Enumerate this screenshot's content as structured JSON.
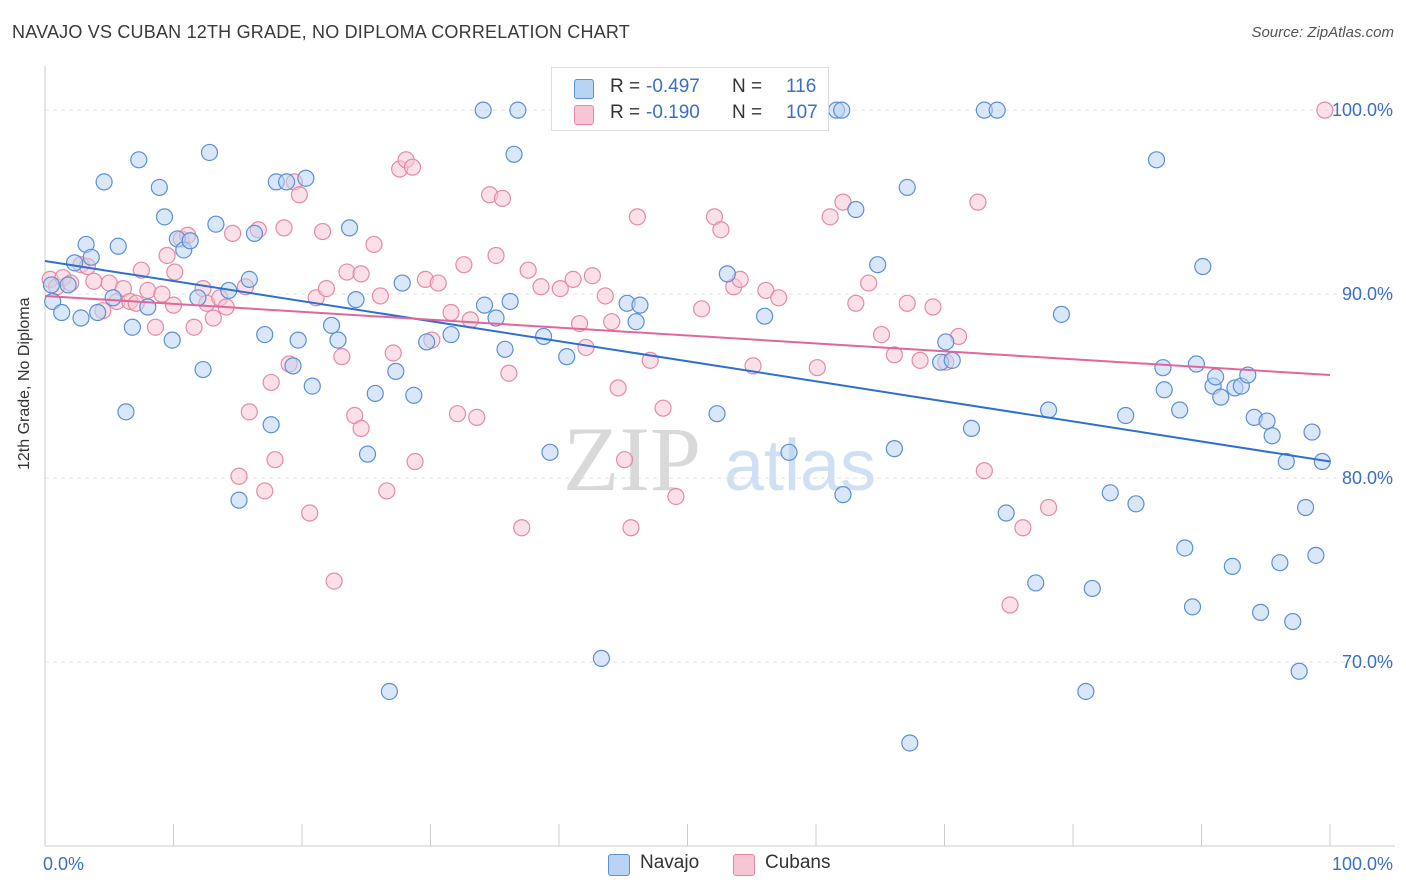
{
  "title": "NAVAJO VS CUBAN 12TH GRADE, NO DIPLOMA CORRELATION CHART",
  "source": "Source: ZipAtlas.com",
  "watermark": {
    "zip": "ZIP",
    "atlas": "atlas"
  },
  "legend": {
    "navajo": {
      "r_label": "R =",
      "r_value": "-0.497",
      "n_label": "N =",
      "n_value": "116"
    },
    "cubans": {
      "r_label": "R =",
      "r_value": "-0.190",
      "n_label": "N =",
      "n_value": "107"
    }
  },
  "bottom_legend": {
    "navajo": "Navajo",
    "cubans": "Cubans"
  },
  "colors": {
    "navajo_fill": "#b9d3f3",
    "navajo_stroke": "#5b8fd6",
    "navajo_line": "#2f6fd0",
    "cubans_fill": "#f7c6d4",
    "cubans_stroke": "#e58aa6",
    "cubans_line": "#e0679a",
    "tick_label": "#3b6fc4",
    "grid": "#e3e3e3"
  },
  "chart_data": {
    "type": "scatter",
    "title": "NAVAJO VS CUBAN 12TH GRADE, NO DIPLOMA CORRELATION CHART",
    "xlabel": "",
    "ylabel": "12th Grade, No Diploma",
    "xlim": [
      0,
      100
    ],
    "ylim": [
      60,
      102.4
    ],
    "x_tick_labels": [
      "0.0%",
      "100.0%"
    ],
    "y_ticks": [
      100,
      90,
      80,
      70
    ],
    "y_tick_labels": [
      "100.0%",
      "90.0%",
      "80.0%",
      "70.0%"
    ],
    "grid": true,
    "legend_position": "top-center",
    "series": [
      {
        "name": "Navajo",
        "trend": {
          "x": [
            0,
            100
          ],
          "y": [
            91.8,
            80.9
          ]
        },
        "points": [
          [
            0.5,
            90.5
          ],
          [
            0.6,
            89.6
          ],
          [
            1.3,
            89.0
          ],
          [
            1.8,
            90.5
          ],
          [
            2.3,
            91.7
          ],
          [
            2.8,
            88.7
          ],
          [
            3.2,
            92.7
          ],
          [
            3.6,
            92.0
          ],
          [
            4.1,
            89.0
          ],
          [
            4.6,
            96.1
          ],
          [
            5.3,
            89.8
          ],
          [
            5.7,
            92.6
          ],
          [
            6.3,
            83.6
          ],
          [
            6.8,
            88.2
          ],
          [
            7.3,
            97.3
          ],
          [
            8.0,
            89.3
          ],
          [
            8.9,
            95.8
          ],
          [
            9.3,
            94.2
          ],
          [
            9.9,
            87.5
          ],
          [
            10.3,
            93.0
          ],
          [
            10.8,
            92.4
          ],
          [
            11.3,
            92.9
          ],
          [
            11.9,
            89.8
          ],
          [
            12.3,
            85.9
          ],
          [
            12.8,
            97.7
          ],
          [
            13.3,
            93.8
          ],
          [
            14.3,
            90.2
          ],
          [
            15.1,
            78.8
          ],
          [
            15.9,
            90.8
          ],
          [
            16.3,
            93.3
          ],
          [
            17.1,
            87.8
          ],
          [
            17.6,
            82.9
          ],
          [
            18.0,
            96.1
          ],
          [
            18.8,
            96.1
          ],
          [
            19.3,
            86.1
          ],
          [
            19.7,
            87.5
          ],
          [
            20.3,
            96.3
          ],
          [
            20.8,
            85.0
          ],
          [
            22.3,
            88.3
          ],
          [
            22.8,
            87.5
          ],
          [
            23.7,
            93.6
          ],
          [
            24.2,
            89.7
          ],
          [
            25.1,
            81.3
          ],
          [
            25.7,
            84.6
          ],
          [
            26.8,
            68.4
          ],
          [
            27.3,
            85.8
          ],
          [
            27.8,
            90.6
          ],
          [
            28.7,
            84.5
          ],
          [
            29.7,
            87.4
          ],
          [
            31.6,
            87.8
          ],
          [
            34.1,
            100.0
          ],
          [
            34.2,
            89.4
          ],
          [
            35.1,
            88.7
          ],
          [
            36.2,
            89.6
          ],
          [
            36.5,
            97.6
          ],
          [
            36.8,
            100.0
          ],
          [
            35.8,
            87.0
          ],
          [
            38.8,
            87.7
          ],
          [
            39.3,
            81.4
          ],
          [
            40.6,
            86.6
          ],
          [
            43.3,
            70.2
          ],
          [
            45.3,
            89.5
          ],
          [
            46.0,
            88.5
          ],
          [
            46.3,
            89.4
          ],
          [
            52.3,
            83.5
          ],
          [
            53.1,
            91.1
          ],
          [
            53.5,
            100.0
          ],
          [
            56.0,
            88.8
          ],
          [
            57.9,
            81.4
          ],
          [
            61.6,
            100.0
          ],
          [
            62.0,
            100.0
          ],
          [
            62.1,
            79.1
          ],
          [
            63.1,
            94.6
          ],
          [
            64.8,
            91.6
          ],
          [
            66.1,
            81.6
          ],
          [
            67.1,
            95.8
          ],
          [
            67.3,
            65.6
          ],
          [
            69.7,
            86.3
          ],
          [
            70.1,
            87.4
          ],
          [
            70.6,
            86.4
          ],
          [
            72.1,
            82.7
          ],
          [
            73.1,
            100.0
          ],
          [
            74.1,
            100.0
          ],
          [
            74.8,
            78.1
          ],
          [
            77.1,
            74.3
          ],
          [
            78.1,
            83.7
          ],
          [
            79.1,
            88.9
          ],
          [
            81.0,
            68.4
          ],
          [
            81.5,
            74.0
          ],
          [
            82.9,
            79.2
          ],
          [
            84.1,
            83.4
          ],
          [
            84.9,
            78.6
          ],
          [
            86.5,
            97.3
          ],
          [
            87.0,
            86.0
          ],
          [
            87.1,
            84.8
          ],
          [
            88.3,
            83.7
          ],
          [
            88.7,
            76.2
          ],
          [
            89.3,
            73.0
          ],
          [
            89.6,
            86.2
          ],
          [
            90.1,
            91.5
          ],
          [
            90.9,
            85.0
          ],
          [
            91.1,
            85.5
          ],
          [
            91.5,
            84.4
          ],
          [
            92.4,
            75.2
          ],
          [
            92.6,
            84.9
          ],
          [
            93.1,
            85.0
          ],
          [
            93.6,
            85.6
          ],
          [
            94.1,
            83.3
          ],
          [
            94.6,
            72.7
          ],
          [
            95.1,
            83.1
          ],
          [
            95.5,
            82.3
          ],
          [
            96.1,
            75.4
          ],
          [
            96.6,
            80.9
          ],
          [
            97.1,
            72.2
          ],
          [
            97.6,
            69.5
          ],
          [
            98.1,
            78.4
          ],
          [
            98.6,
            82.5
          ],
          [
            98.9,
            75.8
          ],
          [
            99.4,
            80.9
          ]
        ]
      },
      {
        "name": "Cubans",
        "trend": {
          "x": [
            0,
            100
          ],
          "y": [
            89.9,
            85.6
          ]
        },
        "points": [
          [
            0.4,
            90.8
          ],
          [
            0.9,
            90.4
          ],
          [
            1.4,
            90.9
          ],
          [
            2.0,
            90.6
          ],
          [
            2.8,
            91.6
          ],
          [
            3.3,
            91.5
          ],
          [
            3.8,
            90.7
          ],
          [
            4.5,
            89.1
          ],
          [
            5.0,
            90.6
          ],
          [
            5.6,
            89.6
          ],
          [
            6.1,
            90.3
          ],
          [
            6.6,
            89.6
          ],
          [
            7.1,
            89.5
          ],
          [
            7.5,
            91.3
          ],
          [
            8.0,
            90.2
          ],
          [
            8.6,
            88.2
          ],
          [
            9.1,
            90.0
          ],
          [
            9.5,
            92.1
          ],
          [
            10.0,
            89.4
          ],
          [
            10.1,
            91.2
          ],
          [
            10.6,
            93.0
          ],
          [
            11.1,
            93.2
          ],
          [
            11.6,
            88.2
          ],
          [
            12.3,
            90.3
          ],
          [
            12.6,
            89.5
          ],
          [
            13.1,
            88.7
          ],
          [
            13.6,
            89.8
          ],
          [
            14.1,
            89.3
          ],
          [
            14.6,
            93.3
          ],
          [
            15.1,
            80.1
          ],
          [
            15.6,
            90.4
          ],
          [
            15.9,
            83.6
          ],
          [
            16.6,
            93.5
          ],
          [
            17.1,
            79.3
          ],
          [
            17.6,
            85.2
          ],
          [
            17.9,
            81.0
          ],
          [
            18.6,
            93.6
          ],
          [
            19.0,
            86.2
          ],
          [
            19.4,
            96.1
          ],
          [
            19.8,
            95.4
          ],
          [
            20.6,
            78.1
          ],
          [
            21.1,
            89.8
          ],
          [
            21.6,
            93.4
          ],
          [
            21.9,
            90.3
          ],
          [
            22.5,
            74.4
          ],
          [
            23.1,
            86.6
          ],
          [
            23.5,
            91.2
          ],
          [
            24.1,
            83.4
          ],
          [
            24.6,
            91.1
          ],
          [
            24.6,
            82.7
          ],
          [
            25.6,
            92.7
          ],
          [
            26.1,
            89.9
          ],
          [
            26.6,
            79.3
          ],
          [
            27.1,
            86.8
          ],
          [
            27.6,
            96.8
          ],
          [
            28.1,
            97.3
          ],
          [
            28.6,
            96.9
          ],
          [
            28.8,
            80.9
          ],
          [
            29.6,
            90.8
          ],
          [
            30.1,
            87.5
          ],
          [
            30.6,
            90.6
          ],
          [
            31.6,
            89.0
          ],
          [
            32.1,
            83.5
          ],
          [
            32.6,
            91.6
          ],
          [
            33.1,
            88.6
          ],
          [
            33.6,
            83.3
          ],
          [
            34.6,
            95.4
          ],
          [
            35.1,
            92.1
          ],
          [
            35.6,
            95.2
          ],
          [
            36.1,
            85.7
          ],
          [
            37.1,
            77.3
          ],
          [
            37.6,
            91.3
          ],
          [
            38.6,
            90.4
          ],
          [
            40.1,
            90.3
          ],
          [
            41.1,
            90.8
          ],
          [
            41.6,
            88.4
          ],
          [
            42.1,
            87.1
          ],
          [
            42.6,
            91.0
          ],
          [
            43.6,
            89.9
          ],
          [
            44.1,
            88.5
          ],
          [
            44.6,
            84.9
          ],
          [
            45.1,
            81.0
          ],
          [
            45.6,
            77.3
          ],
          [
            46.1,
            94.2
          ],
          [
            47.1,
            86.4
          ],
          [
            48.1,
            83.8
          ],
          [
            49.1,
            79.0
          ],
          [
            51.1,
            89.2
          ],
          [
            52.1,
            94.2
          ],
          [
            52.6,
            93.5
          ],
          [
            53.6,
            90.4
          ],
          [
            54.1,
            90.8
          ],
          [
            55.1,
            86.1
          ],
          [
            56.1,
            90.2
          ],
          [
            57.1,
            89.8
          ],
          [
            60.1,
            86.0
          ],
          [
            61.1,
            94.2
          ],
          [
            62.1,
            95.0
          ],
          [
            63.1,
            89.5
          ],
          [
            64.1,
            90.6
          ],
          [
            65.1,
            87.8
          ],
          [
            66.1,
            86.7
          ],
          [
            67.1,
            89.5
          ],
          [
            68.1,
            86.4
          ],
          [
            69.1,
            89.3
          ],
          [
            70.1,
            86.3
          ],
          [
            71.1,
            87.7
          ],
          [
            72.6,
            95.0
          ],
          [
            73.1,
            80.4
          ],
          [
            75.1,
            73.1
          ],
          [
            76.1,
            77.3
          ],
          [
            78.1,
            78.4
          ],
          [
            99.6,
            100.0
          ]
        ]
      }
    ]
  }
}
